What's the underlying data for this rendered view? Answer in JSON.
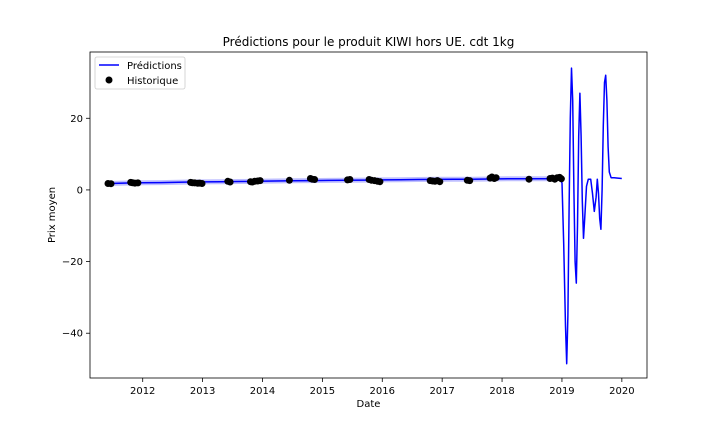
{
  "chart_data": {
    "type": "line",
    "title": "Prédictions pour le produit KIWI hors UE. cdt 1kg",
    "xlabel": "Date",
    "ylabel": "Prix moyen",
    "xlim": [
      2011.12,
      2020.42
    ],
    "ylim": [
      -52.5,
      38.5
    ],
    "x_ticks": [
      2012,
      2013,
      2014,
      2015,
      2016,
      2017,
      2018,
      2019,
      2020
    ],
    "x_tick_labels": [
      "2012",
      "2013",
      "2014",
      "2015",
      "2016",
      "2017",
      "2018",
      "2019",
      "2020"
    ],
    "y_ticks": [
      -40,
      -20,
      0,
      20
    ],
    "y_tick_labels": [
      "−40",
      "−20",
      "0",
      "20"
    ],
    "grid": false,
    "legend_position": "top-left",
    "colors": {
      "predictions": "#0000ff",
      "historique": "#000000"
    },
    "series": [
      {
        "name": "Prédictions",
        "kind": "line",
        "points": [
          [
            2011.45,
            1.8
          ],
          [
            2011.6,
            1.85
          ],
          [
            2011.8,
            1.95
          ],
          [
            2012.0,
            2.0
          ],
          [
            2012.3,
            2.05
          ],
          [
            2012.6,
            2.15
          ],
          [
            2012.8,
            2.2
          ],
          [
            2013.0,
            2.25
          ],
          [
            2013.3,
            2.3
          ],
          [
            2013.6,
            2.35
          ],
          [
            2013.9,
            2.4
          ],
          [
            2014.2,
            2.5
          ],
          [
            2014.5,
            2.55
          ],
          [
            2014.8,
            2.6
          ],
          [
            2015.1,
            2.65
          ],
          [
            2015.4,
            2.7
          ],
          [
            2015.7,
            2.75
          ],
          [
            2016.0,
            2.8
          ],
          [
            2016.3,
            2.85
          ],
          [
            2016.6,
            2.9
          ],
          [
            2016.9,
            2.95
          ],
          [
            2017.2,
            3.0
          ],
          [
            2017.5,
            3.0
          ],
          [
            2017.8,
            3.05
          ],
          [
            2018.1,
            3.1
          ],
          [
            2018.4,
            3.1
          ],
          [
            2018.7,
            3.1
          ],
          [
            2018.95,
            3.2
          ],
          [
            2019.0,
            2.0
          ],
          [
            2019.03,
            -15.0
          ],
          [
            2019.06,
            -38.0
          ],
          [
            2019.08,
            -48.5
          ],
          [
            2019.1,
            -35.0
          ],
          [
            2019.12,
            -5.0
          ],
          [
            2019.14,
            20.0
          ],
          [
            2019.16,
            34.0
          ],
          [
            2019.18,
            25.0
          ],
          [
            2019.2,
            0.0
          ],
          [
            2019.22,
            -20.0
          ],
          [
            2019.24,
            -26.0
          ],
          [
            2019.26,
            -10.0
          ],
          [
            2019.28,
            15.0
          ],
          [
            2019.3,
            27.0
          ],
          [
            2019.32,
            15.0
          ],
          [
            2019.34,
            -3.0
          ],
          [
            2019.36,
            -13.5
          ],
          [
            2019.38,
            -8.0
          ],
          [
            2019.41,
            1.0
          ],
          [
            2019.44,
            3.0
          ],
          [
            2019.48,
            3.0
          ],
          [
            2019.51,
            -1.0
          ],
          [
            2019.54,
            -6.0
          ],
          [
            2019.57,
            -2.0
          ],
          [
            2019.59,
            3.0
          ],
          [
            2019.61,
            -1.0
          ],
          [
            2019.63,
            -8.0
          ],
          [
            2019.65,
            -11.0
          ],
          [
            2019.67,
            0.0
          ],
          [
            2019.69,
            18.0
          ],
          [
            2019.71,
            30.0
          ],
          [
            2019.73,
            32.0
          ],
          [
            2019.75,
            25.0
          ],
          [
            2019.77,
            12.0
          ],
          [
            2019.79,
            5.0
          ],
          [
            2019.82,
            3.4
          ],
          [
            2019.87,
            3.4
          ],
          [
            2019.93,
            3.3
          ],
          [
            2020.0,
            3.2
          ]
        ]
      },
      {
        "name": "Historique",
        "kind": "scatter",
        "points": [
          [
            2011.42,
            1.8
          ],
          [
            2011.47,
            1.75
          ],
          [
            2011.8,
            2.1
          ],
          [
            2011.83,
            2.0
          ],
          [
            2011.87,
            1.9
          ],
          [
            2011.92,
            1.95
          ],
          [
            2012.8,
            2.1
          ],
          [
            2012.83,
            2.0
          ],
          [
            2012.87,
            1.95
          ],
          [
            2012.92,
            1.85
          ],
          [
            2012.95,
            1.9
          ],
          [
            2012.99,
            1.8
          ],
          [
            2013.42,
            2.4
          ],
          [
            2013.46,
            2.2
          ],
          [
            2013.8,
            2.3
          ],
          [
            2013.83,
            2.2
          ],
          [
            2013.87,
            2.4
          ],
          [
            2013.92,
            2.5
          ],
          [
            2013.96,
            2.6
          ],
          [
            2014.45,
            2.7
          ],
          [
            2014.8,
            3.2
          ],
          [
            2014.83,
            3.0
          ],
          [
            2014.87,
            2.9
          ],
          [
            2015.42,
            2.8
          ],
          [
            2015.46,
            2.9
          ],
          [
            2015.78,
            2.9
          ],
          [
            2015.82,
            2.7
          ],
          [
            2015.87,
            2.6
          ],
          [
            2015.92,
            2.4
          ],
          [
            2015.96,
            2.3
          ],
          [
            2016.8,
            2.6
          ],
          [
            2016.84,
            2.5
          ],
          [
            2016.88,
            2.4
          ],
          [
            2016.92,
            2.6
          ],
          [
            2016.96,
            2.3
          ],
          [
            2017.42,
            2.7
          ],
          [
            2017.46,
            2.6
          ],
          [
            2017.8,
            3.3
          ],
          [
            2017.83,
            3.6
          ],
          [
            2017.87,
            3.2
          ],
          [
            2017.9,
            3.4
          ],
          [
            2018.45,
            3.0
          ],
          [
            2018.8,
            3.2
          ],
          [
            2018.84,
            3.3
          ],
          [
            2018.88,
            3.0
          ],
          [
            2018.92,
            3.4
          ],
          [
            2018.96,
            3.5
          ],
          [
            2018.99,
            3.1
          ]
        ]
      }
    ],
    "confidence_band": {
      "note": "",
      "x_start": 2011.45,
      "x_end": 2018.95
    }
  }
}
